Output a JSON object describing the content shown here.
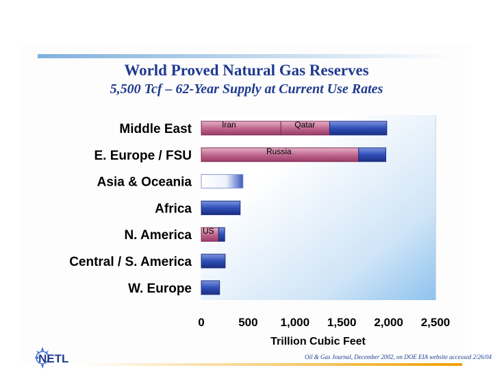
{
  "chart_data": {
    "type": "bar",
    "orientation": "horizontal",
    "title": "World Proved Natural Gas Reserves",
    "subtitle": "5,500 Tcf – 62-Year Supply at Current Use Rates",
    "xlabel": "Trillion Cubic Feet",
    "xlim": [
      0,
      2500
    ],
    "xticks": [
      "0",
      "500",
      "1,000",
      "1,500",
      "2,000",
      "2,500"
    ],
    "xtick_values": [
      0,
      500,
      1000,
      1500,
      2000,
      2500
    ],
    "grid": false,
    "categories": [
      {
        "name": "Middle East",
        "total": 1980,
        "segments": [
          {
            "label": "Iran",
            "value": 850,
            "style": "pink"
          },
          {
            "label": "Qatar",
            "value": 520,
            "style": "pink"
          },
          {
            "label": "",
            "value": 610,
            "style": "blue"
          }
        ]
      },
      {
        "name": "E. Europe / FSU",
        "total": 1970,
        "segments": [
          {
            "label": "Russia",
            "value": 1680,
            "style": "pink"
          },
          {
            "label": "",
            "value": 290,
            "style": "blue"
          }
        ]
      },
      {
        "name": "Asia & Oceania",
        "total": 445,
        "segments": [
          {
            "label": "",
            "value": 445,
            "style": "light"
          }
        ]
      },
      {
        "name": "Africa",
        "total": 415,
        "segments": [
          {
            "label": "",
            "value": 415,
            "style": "blue"
          }
        ]
      },
      {
        "name": "N. America",
        "total": 250,
        "segments": [
          {
            "label": "US",
            "value": 185,
            "style": "pink"
          },
          {
            "label": "",
            "value": 65,
            "style": "blue"
          }
        ]
      },
      {
        "name": "Central / S. America",
        "total": 255,
        "segments": [
          {
            "label": "",
            "value": 255,
            "style": "blue"
          }
        ]
      },
      {
        "name": "W. Europe",
        "total": 195,
        "segments": [
          {
            "label": "",
            "value": 195,
            "style": "blue"
          }
        ]
      }
    ]
  },
  "footer": {
    "source": "Oil & Gas Journal, December 2002, on DOE EIA website accessed 2/26/04",
    "logo_text": "NETL"
  },
  "colors": {
    "title": "#1f3a8f",
    "pink": "#b04a78",
    "blue": "#2f4fb8",
    "accent_orange": "#f0a000"
  }
}
